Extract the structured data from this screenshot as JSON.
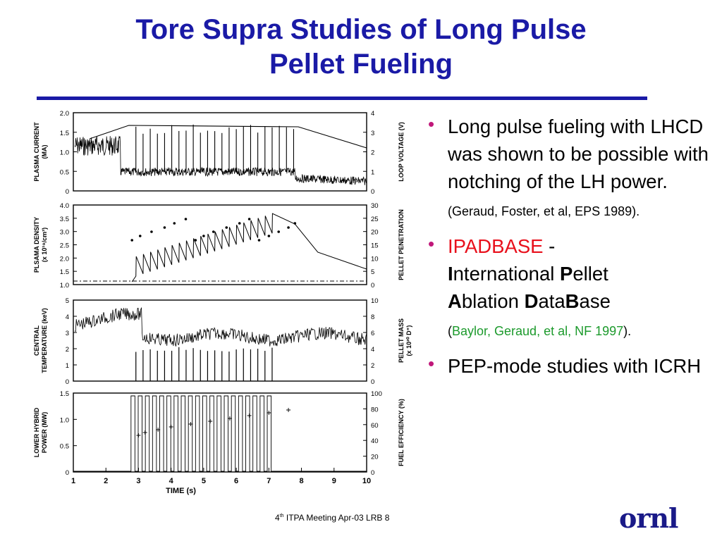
{
  "title": {
    "line1": "Tore Supra Studies of Long Pulse",
    "line2": "Pellet Fueling"
  },
  "figure": {
    "x_ticks": [
      "1",
      "2",
      "3",
      "4",
      "5",
      "6",
      "7",
      "8",
      "9",
      "10"
    ],
    "xlabel": "TIME (s)",
    "panels": [
      {
        "left_label": [
          "PLASMA CURRENT",
          "(MA)"
        ],
        "left_ticks": [
          "0",
          "0.5",
          "1.0",
          "1.5",
          "2.0"
        ],
        "right_label": [
          "LOOP VOLTAGE (V)"
        ],
        "right_ticks": [
          "0",
          "1",
          "2",
          "3",
          "4"
        ]
      },
      {
        "left_label": [
          "PLSAMA DENSITY",
          "(x 10¹⁹/cm³)"
        ],
        "left_ticks": [
          "1.0",
          "1.5",
          "2.0",
          "2.5",
          "3.0",
          "3.5",
          "4.0"
        ],
        "right_label": [
          "PELLET PENETRATION"
        ],
        "right_ticks": [
          "0",
          "5",
          "10",
          "15",
          "20",
          "25",
          "30"
        ]
      },
      {
        "left_label": [
          "CENTRAL",
          "TEMPERATURE (keV)"
        ],
        "left_ticks": [
          "0",
          "1",
          "2",
          "3",
          "4",
          "5"
        ],
        "right_label": [
          "PELLET MASS",
          "(x 10²⁰ D⁺)"
        ],
        "right_ticks": [
          "0",
          "2",
          "4",
          "6",
          "8",
          "10"
        ]
      },
      {
        "left_label": [
          "LOWER HYBRID",
          "POWER (MW)"
        ],
        "left_ticks": [
          "0",
          "0.5",
          "1.0",
          "1.5"
        ],
        "right_label": [
          "FUEL EFFICIENCY (%)"
        ],
        "right_ticks": [
          "0",
          "20",
          "40",
          "60",
          "80",
          "100"
        ]
      }
    ]
  },
  "bullets": {
    "b1_main": "Long pulse fueling with LHCD was shown to be possible with notching of the LH power.",
    "b1_ref": "(Geraud, Foster, et al, EPS 1989).",
    "b2_red": "IPADBASE",
    "b2_dash": " -",
    "b2_w1_bold": "I",
    "b2_w1_rest": "nternational ",
    "b2_w2_bold": "P",
    "b2_w2_rest": "ellet",
    "b2_w3_bold": "A",
    "b2_w3_rest": "blation ",
    "b2_w4_bold": "D",
    "b2_w4_mid": "ata",
    "b2_w5_bold": "B",
    "b2_w5_rest": "ase",
    "b2_ref_open": "(",
    "b2_ref": "Baylor, Geraud, et al, NF 1997",
    "b2_ref_close": ").",
    "b3": " PEP-mode studies with ICRH"
  },
  "footer": {
    "num": "4",
    "sup": "th",
    "text": " ITPA Meeting  Apr-03   LRB     8"
  },
  "logo": "ornl"
}
